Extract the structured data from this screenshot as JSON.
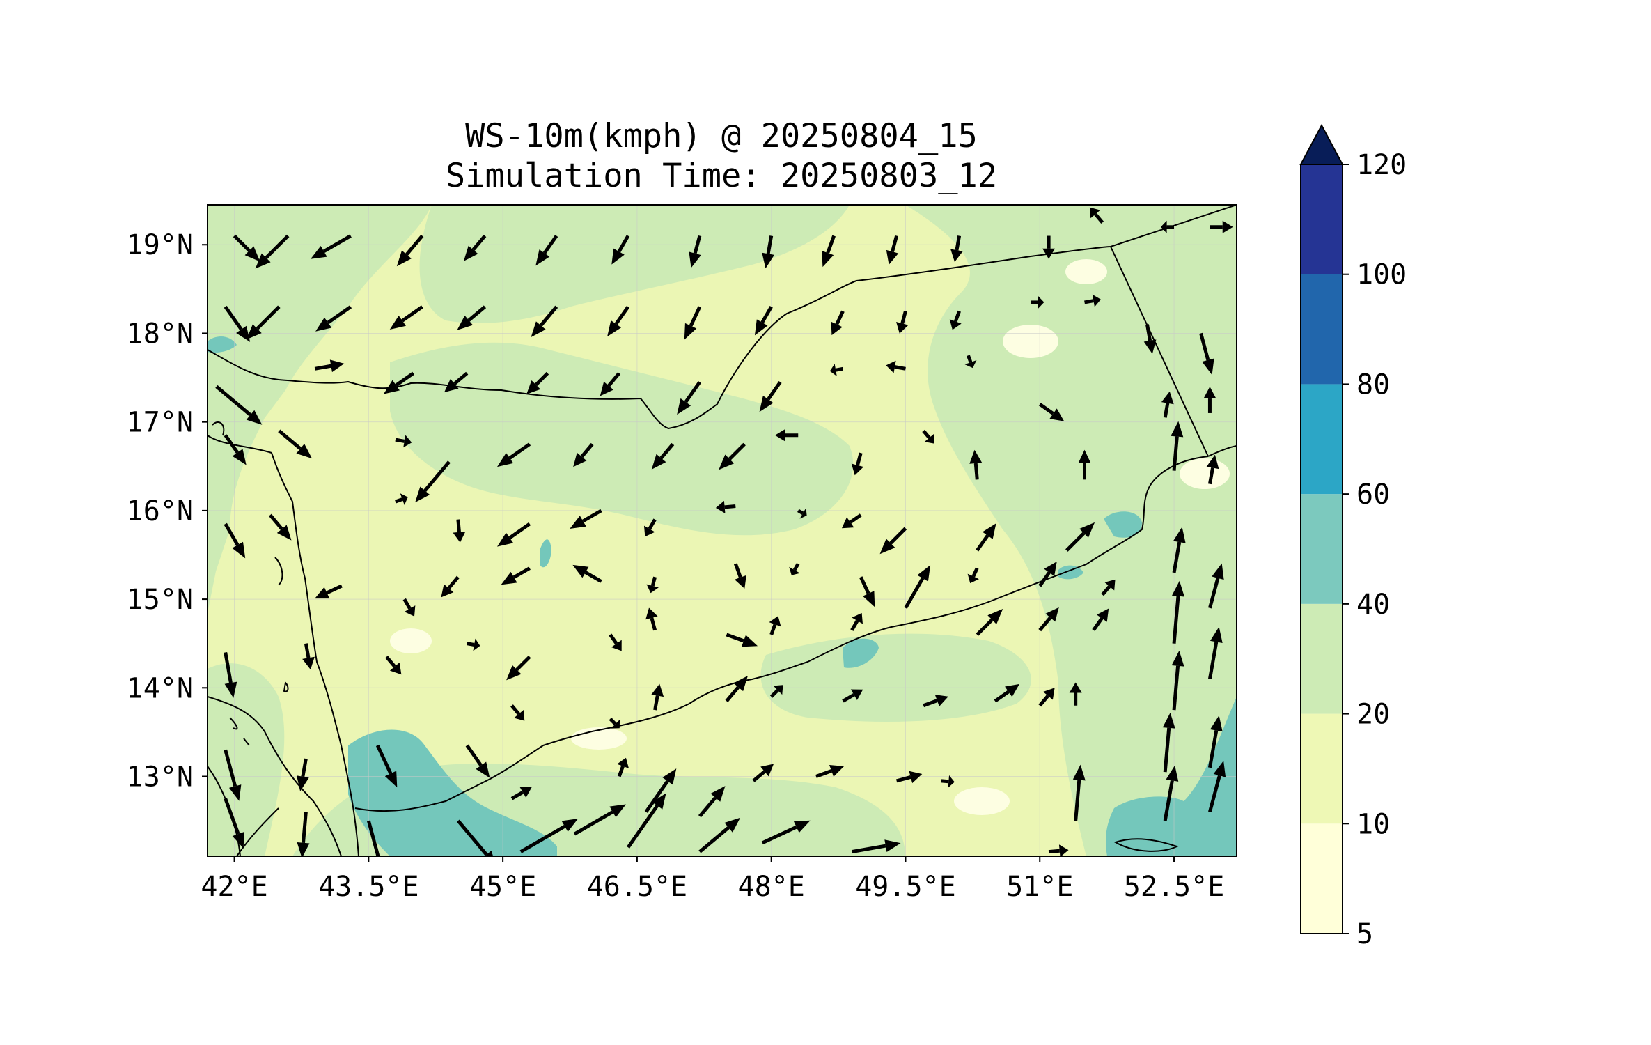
{
  "title": {
    "line1": "WS-10m(kmph) @ 20250804_15",
    "line2": "Simulation Time: 20250803_12"
  },
  "map": {
    "lon_range": [
      41.7,
      53.2
    ],
    "lat_range": [
      12.1,
      19.45
    ],
    "background_color": "#f3f9c8",
    "border_color": "#000000",
    "x_ticks": [
      {
        "value": 42.0,
        "label": "42°E"
      },
      {
        "value": 43.5,
        "label": "43.5°E"
      },
      {
        "value": 45.0,
        "label": "45°E"
      },
      {
        "value": 46.5,
        "label": "46.5°E"
      },
      {
        "value": 48.0,
        "label": "48°E"
      },
      {
        "value": 49.5,
        "label": "49.5°E"
      },
      {
        "value": 51.0,
        "label": "51°E"
      },
      {
        "value": 52.5,
        "label": "52.5°E"
      }
    ],
    "y_ticks": [
      {
        "value": 19,
        "label": "19°N"
      },
      {
        "value": 18,
        "label": "18°N"
      },
      {
        "value": 17,
        "label": "17°N"
      },
      {
        "value": 16,
        "label": "16°N"
      },
      {
        "value": 15,
        "label": "15°N"
      },
      {
        "value": 14,
        "label": "14°N"
      },
      {
        "value": 13,
        "label": "13°N"
      }
    ]
  },
  "colorbar": {
    "levels": [
      "5",
      "10",
      "20",
      "40",
      "60",
      "80",
      "100",
      "120"
    ],
    "colors": [
      "#ffffd9",
      "#eef8b5",
      "#cdebb5",
      "#7cc9be",
      "#2ca6c6",
      "#2166ac",
      "#253494"
    ],
    "extend_color": "#081d58"
  },
  "wind_vectors": {
    "unit": "kmph",
    "arrows": [
      [
        42.0,
        19.1,
        135,
        5.5
      ],
      [
        42.6,
        19.1,
        225,
        7
      ],
      [
        43.3,
        19.1,
        240,
        7
      ],
      [
        44.1,
        19.1,
        220,
        6
      ],
      [
        44.8,
        19.1,
        220,
        5
      ],
      [
        45.6,
        19.1,
        215,
        5.5
      ],
      [
        46.4,
        19.1,
        210,
        5
      ],
      [
        47.2,
        19.1,
        195,
        5
      ],
      [
        48.0,
        19.1,
        190,
        5
      ],
      [
        48.7,
        19.1,
        200,
        5
      ],
      [
        49.4,
        19.1,
        195,
        4.5
      ],
      [
        50.1,
        19.1,
        190,
        4
      ],
      [
        51.1,
        19.1,
        180,
        3.5
      ],
      [
        51.7,
        19.25,
        320,
        3
      ],
      [
        52.5,
        19.2,
        270,
        2
      ],
      [
        52.9,
        19.2,
        90,
        3.5
      ],
      [
        41.9,
        18.3,
        145,
        6.5
      ],
      [
        42.5,
        18.3,
        225,
        7
      ],
      [
        43.3,
        18.3,
        235,
        6.5
      ],
      [
        44.1,
        18.3,
        235,
        6
      ],
      [
        44.8,
        18.3,
        230,
        5.5
      ],
      [
        45.6,
        18.3,
        220,
        6
      ],
      [
        46.4,
        18.3,
        215,
        5.5
      ],
      [
        47.2,
        18.3,
        205,
        5.5
      ],
      [
        48.0,
        18.3,
        210,
        5
      ],
      [
        48.8,
        18.25,
        205,
        4
      ],
      [
        49.5,
        18.25,
        195,
        3.5
      ],
      [
        50.1,
        18.25,
        200,
        3
      ],
      [
        50.9,
        18.35,
        90,
        2
      ],
      [
        51.5,
        18.35,
        80,
        2.5
      ],
      [
        52.2,
        18.1,
        170,
        4.5
      ],
      [
        52.8,
        18.0,
        165,
        6.5
      ],
      [
        42.9,
        17.6,
        80,
        4.5
      ],
      [
        41.8,
        17.4,
        130,
        9
      ],
      [
        44.0,
        17.55,
        235,
        5.5
      ],
      [
        44.6,
        17.55,
        230,
        4.5
      ],
      [
        45.5,
        17.55,
        225,
        4.5
      ],
      [
        46.3,
        17.55,
        220,
        4.5
      ],
      [
        47.2,
        17.45,
        215,
        6
      ],
      [
        48.1,
        17.45,
        215,
        5.5
      ],
      [
        48.8,
        17.6,
        260,
        2
      ],
      [
        49.5,
        17.6,
        280,
        3
      ],
      [
        50.2,
        17.75,
        160,
        2
      ],
      [
        51.0,
        17.2,
        125,
        4.5
      ],
      [
        52.4,
        17.05,
        10,
        4
      ],
      [
        52.9,
        17.1,
        0,
        4
      ],
      [
        42.5,
        16.9,
        130,
        6.5
      ],
      [
        41.9,
        16.85,
        145,
        5.5
      ],
      [
        43.8,
        16.8,
        100,
        2.5
      ],
      [
        44.4,
        16.55,
        220,
        8
      ],
      [
        45.3,
        16.75,
        235,
        6
      ],
      [
        46.0,
        16.75,
        220,
        4.5
      ],
      [
        46.9,
        16.75,
        220,
        5
      ],
      [
        47.7,
        16.75,
        225,
        5.5
      ],
      [
        48.3,
        16.85,
        270,
        3.5
      ],
      [
        49.0,
        16.65,
        195,
        3.5
      ],
      [
        49.7,
        16.9,
        140,
        2.5
      ],
      [
        50.3,
        16.35,
        355,
        4.5
      ],
      [
        51.5,
        16.35,
        0,
        4.5
      ],
      [
        52.5,
        16.45,
        5,
        7.5
      ],
      [
        52.9,
        16.3,
        10,
        4.5
      ],
      [
        42.4,
        15.95,
        140,
        5
      ],
      [
        41.9,
        15.85,
        150,
        6
      ],
      [
        43.8,
        16.1,
        70,
        2
      ],
      [
        44.5,
        15.9,
        175,
        3.5
      ],
      [
        45.3,
        15.85,
        235,
        6
      ],
      [
        46.1,
        16.0,
        240,
        5.5
      ],
      [
        46.7,
        15.9,
        210,
        3
      ],
      [
        47.6,
        16.05,
        265,
        3
      ],
      [
        48.3,
        16.0,
        120,
        1.5
      ],
      [
        49.0,
        15.95,
        235,
        3.5
      ],
      [
        49.5,
        15.8,
        225,
        5.5
      ],
      [
        50.3,
        15.55,
        35,
        5
      ],
      [
        51.3,
        15.55,
        45,
        6
      ],
      [
        52.5,
        15.3,
        10,
        7
      ],
      [
        43.2,
        15.15,
        245,
        4.5
      ],
      [
        43.9,
        15.0,
        150,
        3
      ],
      [
        44.5,
        15.25,
        220,
        4
      ],
      [
        45.3,
        15.35,
        240,
        5
      ],
      [
        46.1,
        15.2,
        300,
        5
      ],
      [
        46.7,
        15.25,
        195,
        2.5
      ],
      [
        47.6,
        15.4,
        160,
        4
      ],
      [
        48.3,
        15.4,
        210,
        2
      ],
      [
        49.0,
        15.25,
        155,
        5
      ],
      [
        49.5,
        14.9,
        30,
        7.5
      ],
      [
        50.3,
        15.35,
        205,
        2.5
      ],
      [
        51.0,
        15.15,
        35,
        4.5
      ],
      [
        51.7,
        15.05,
        40,
        3
      ],
      [
        52.5,
        14.5,
        5,
        9.5
      ],
      [
        52.9,
        14.9,
        15,
        7
      ],
      [
        41.9,
        14.4,
        170,
        7
      ],
      [
        42.8,
        14.5,
        170,
        4
      ],
      [
        43.7,
        14.35,
        140,
        3.5
      ],
      [
        44.6,
        14.5,
        100,
        2
      ],
      [
        45.3,
        14.35,
        225,
        5
      ],
      [
        46.2,
        14.6,
        145,
        3
      ],
      [
        46.7,
        14.65,
        345,
        3.5
      ],
      [
        47.5,
        14.6,
        110,
        5
      ],
      [
        48.0,
        14.6,
        20,
        3
      ],
      [
        48.9,
        14.65,
        30,
        3
      ],
      [
        50.3,
        14.6,
        45,
        5.5
      ],
      [
        51.0,
        14.65,
        40,
        4.5
      ],
      [
        51.6,
        14.65,
        35,
        4
      ],
      [
        52.5,
        13.75,
        5,
        9
      ],
      [
        52.9,
        14.1,
        10,
        8
      ],
      [
        41.9,
        13.3,
        165,
        8
      ],
      [
        42.8,
        13.2,
        190,
        5
      ],
      [
        43.6,
        13.35,
        155,
        7
      ],
      [
        44.6,
        13.35,
        145,
        6
      ],
      [
        45.1,
        13.8,
        140,
        3
      ],
      [
        46.2,
        13.65,
        135,
        2
      ],
      [
        46.7,
        13.75,
        10,
        4
      ],
      [
        47.5,
        13.85,
        40,
        5
      ],
      [
        48.0,
        13.9,
        45,
        2.5
      ],
      [
        48.8,
        13.85,
        60,
        3.5
      ],
      [
        49.7,
        13.8,
        70,
        4
      ],
      [
        50.5,
        13.85,
        55,
        4.5
      ],
      [
        51.0,
        13.8,
        40,
        3.5
      ],
      [
        51.4,
        13.8,
        0,
        3.5
      ],
      [
        52.4,
        13.05,
        5,
        9
      ],
      [
        52.9,
        13.1,
        10,
        8
      ],
      [
        41.9,
        12.75,
        160,
        8
      ],
      [
        42.8,
        12.6,
        185,
        7
      ],
      [
        43.5,
        12.5,
        165,
        9
      ],
      [
        44.5,
        12.5,
        140,
        9
      ],
      [
        45.1,
        12.75,
        60,
        3.5
      ],
      [
        45.8,
        12.35,
        60,
        9
      ],
      [
        46.3,
        13.0,
        20,
        3
      ],
      [
        46.6,
        12.6,
        35,
        8
      ],
      [
        47.2,
        12.55,
        40,
        6
      ],
      [
        47.8,
        12.95,
        50,
        4
      ],
      [
        48.5,
        13.0,
        70,
        4.5
      ],
      [
        49.4,
        12.95,
        75,
        4
      ],
      [
        49.9,
        12.95,
        95,
        2
      ],
      [
        51.4,
        12.5,
        5,
        8.5
      ],
      [
        52.4,
        12.5,
        10,
        8.5
      ],
      [
        52.9,
        12.6,
        15,
        8
      ],
      [
        47.9,
        12.25,
        65,
        8
      ],
      [
        48.9,
        12.15,
        80,
        7.5
      ],
      [
        51.1,
        12.15,
        85,
        3
      ],
      [
        45.2,
        12.15,
        60,
        10
      ],
      [
        46.4,
        12.2,
        35,
        10
      ],
      [
        47.2,
        12.15,
        50,
        8
      ]
    ]
  }
}
